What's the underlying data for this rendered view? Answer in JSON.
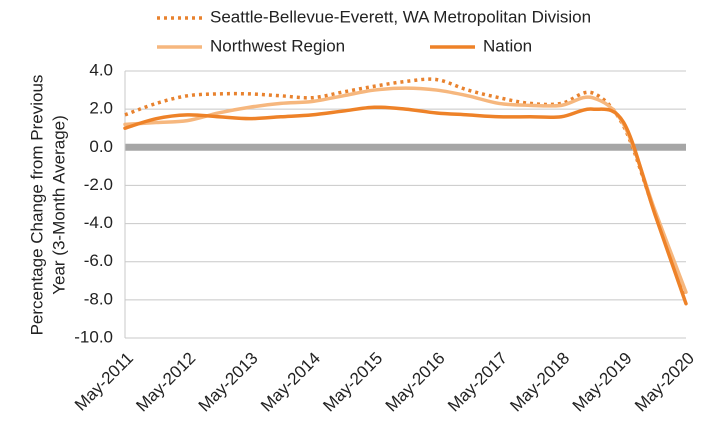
{
  "chart_data": {
    "type": "line",
    "y_label": [
      "Percentage Change from Previous",
      "Year (3-Month Average)"
    ],
    "categories": [
      "May-2011",
      null,
      "May-2012",
      null,
      "May-2013",
      null,
      "May-2014",
      null,
      "May-2015",
      null,
      "May-2016",
      null,
      "May-2017",
      null,
      "May-2018",
      null,
      "May-2019",
      null,
      "May-2020"
    ],
    "series": [
      {
        "name": "Seattle-Bellevue-Everett, WA Metropolitan Division",
        "color": "#e8822e",
        "dash": "dotted",
        "values": [
          1.7,
          2.3,
          2.7,
          2.8,
          2.8,
          2.7,
          2.6,
          2.9,
          3.2,
          3.45,
          3.55,
          3.0,
          2.6,
          2.3,
          2.3,
          2.85,
          1.1,
          -3.4,
          -7.7
        ]
      },
      {
        "name": "Northwest Region",
        "color": "#f6b77e",
        "dash": "solid",
        "values": [
          1.2,
          1.3,
          1.4,
          1.8,
          2.1,
          2.3,
          2.4,
          2.7,
          3.0,
          3.1,
          3.0,
          2.7,
          2.3,
          2.2,
          2.2,
          2.6,
          1.2,
          -3.3,
          -7.6
        ]
      },
      {
        "name": "Nation",
        "color": "#ee8228",
        "dash": "solid",
        "values": [
          1.0,
          1.5,
          1.7,
          1.6,
          1.5,
          1.6,
          1.7,
          1.9,
          2.1,
          2.0,
          1.8,
          1.7,
          1.6,
          1.6,
          1.6,
          2.0,
          1.3,
          -3.5,
          -8.2
        ]
      }
    ],
    "ylim": [
      -10,
      4
    ],
    "yticks": [
      {
        "value": 4,
        "label": "4.0"
      },
      {
        "value": 2,
        "label": "2.0"
      },
      {
        "value": 0,
        "label": "0.0"
      },
      {
        "value": -2,
        "label": "-2.0"
      },
      {
        "value": -4,
        "label": "-4.0"
      },
      {
        "value": -6,
        "label": "-6.0"
      },
      {
        "value": -8,
        "label": "-8.0"
      },
      {
        "value": -10,
        "label": "-10.0"
      }
    ],
    "grid": true,
    "reference_line": 0
  }
}
